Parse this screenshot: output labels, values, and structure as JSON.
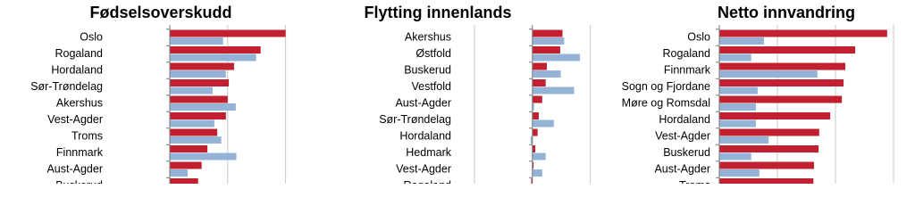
{
  "chart_data": [
    {
      "type": "bar",
      "orientation": "horizontal",
      "title": "Fødselsoverskudd",
      "categories": [
        "Oslo",
        "Rogaland",
        "Hordaland",
        "Sør-Trøndelag",
        "Akershus",
        "Vest-Agder",
        "Troms",
        "Finnmark",
        "Aust-Agder",
        "Buskerud"
      ],
      "series": [
        {
          "color": "#c0202f",
          "values": [
            2.0,
            1.57,
            1.11,
            1.02,
            1.0,
            0.97,
            0.82,
            0.65,
            0.55,
            0.49
          ]
        },
        {
          "color": "#95b3d7",
          "values": [
            0.92,
            1.49,
            0.97,
            0.74,
            1.14,
            0.77,
            0.89,
            1.15,
            0.31,
            null
          ]
        }
      ],
      "xlim": [
        0,
        2.5
      ],
      "xticks": [
        0,
        1,
        2
      ],
      "grid": true
    },
    {
      "type": "bar",
      "orientation": "horizontal",
      "title": "Flytting innenlands",
      "categories": [
        "Akershus",
        "Østfold",
        "Buskerud",
        "Vestfold",
        "Aust-Agder",
        "Sør-Trøndelag",
        "Hordaland",
        "Hedmark",
        "Vest-Agder",
        "Rogaland"
      ],
      "series": [
        {
          "color": "#c0202f",
          "values": [
            0.52,
            0.48,
            0.25,
            0.23,
            0.17,
            0.11,
            0.09,
            0.05,
            0.02,
            -0.02
          ]
        },
        {
          "color": "#95b3d7",
          "values": [
            0.55,
            0.82,
            0.49,
            0.72,
            0.03,
            0.37,
            -0.03,
            0.23,
            0.17,
            null
          ]
        }
      ],
      "xlim": [
        -1.2,
        1.9
      ],
      "xticks": [
        -1,
        0,
        1
      ],
      "grid": true
    },
    {
      "type": "bar",
      "orientation": "horizontal",
      "title": "Netto innvandring",
      "categories": [
        "Oslo",
        "Rogaland",
        "Finnmark",
        "Sogn og Fjordane",
        "Møre og Romsdal",
        "Hordaland",
        "Vest-Agder",
        "Buskerud",
        "Aust-Agder",
        "Troms"
      ],
      "series": [
        {
          "color": "#c0202f",
          "values": [
            2.89,
            2.34,
            2.17,
            2.14,
            2.11,
            1.91,
            1.72,
            1.71,
            1.63,
            1.62
          ]
        },
        {
          "color": "#95b3d7",
          "values": [
            0.77,
            0.55,
            1.69,
            0.66,
            0.63,
            0.63,
            0.85,
            0.55,
            0.69,
            null
          ]
        }
      ],
      "xlim": [
        0,
        3.2
      ],
      "xticks": [
        0,
        1,
        2,
        3
      ],
      "grid": true
    }
  ]
}
